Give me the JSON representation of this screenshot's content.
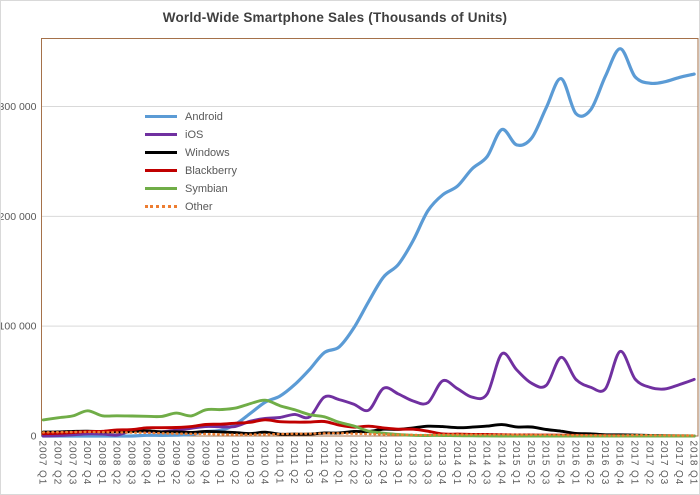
{
  "chart_data": {
    "type": "line",
    "title": "World-Wide Smartphone Sales (Thousands of Units)",
    "xlabel": "",
    "ylabel": "",
    "ylim": [
      0,
      360000
    ],
    "grid": "horizontal",
    "legend_position": "inside-top-left",
    "axis_text_color": "#595959",
    "plot_border_color": "#a5714a",
    "gridline_color": "#d9d9d9",
    "y_ticks": [
      {
        "label": "0",
        "value": 0
      },
      {
        "label": "100 000",
        "value": 100000
      },
      {
        "label": "200 000",
        "value": 200000
      },
      {
        "label": "300 000",
        "value": 300000
      }
    ],
    "categories": [
      "2007 Q1",
      "2007 Q2",
      "2007 Q3",
      "2007 Q4",
      "2008 Q1",
      "2008 Q2",
      "2008 Q3",
      "2008 Q4",
      "2009 Q1",
      "2009 Q2",
      "2009 Q3",
      "2009 Q4",
      "2010 Q1",
      "2010 Q2",
      "2010 Q3",
      "2010 Q4",
      "2011 Q1",
      "2011 Q2",
      "2011 Q3",
      "2011 Q4",
      "2012 Q1",
      "2012 Q2",
      "2012 Q3",
      "2012 Q4",
      "2013 Q1",
      "2013 Q2",
      "2013 Q3",
      "2013 Q4",
      "2014 Q1",
      "2014 Q2",
      "2014 Q3",
      "2014 Q4",
      "2015 Q1",
      "2015 Q2",
      "2015 Q3",
      "2015 Q4",
      "2016 Q1",
      "2016 Q2",
      "2016 Q3",
      "2016 Q4",
      "2017 Q1",
      "2017 Q2",
      "2017 Q3",
      "2017 Q4",
      "2018 Q1"
    ],
    "series": [
      {
        "name": "Android",
        "color": "#5B9BD5",
        "style": "solid",
        "values": [
          0,
          0,
          0,
          0,
          0,
          0,
          0,
          640,
          575,
          755,
          1425,
          4045,
          5225,
          10655,
          20545,
          30800,
          36350,
          46775,
          60490,
          75905,
          81065,
          98530,
          122480,
          144720,
          156185,
          177900,
          205025,
          219615,
          227550,
          243485,
          254355,
          279060,
          265010,
          271010,
          298795,
          325395,
          293770,
          296910,
          327570,
          352670,
          327165,
          321190,
          322500,
          326500,
          329500
        ]
      },
      {
        "name": "iOS",
        "color": "#7030A0",
        "style": "solid",
        "values": [
          0,
          270,
          1105,
          1930,
          1725,
          895,
          4720,
          4080,
          3850,
          5325,
          7040,
          8675,
          8360,
          8745,
          13485,
          16010,
          16885,
          19630,
          17295,
          35455,
          33120,
          28935,
          23550,
          43455,
          38330,
          31900,
          30330,
          50225,
          43060,
          35345,
          38185,
          74830,
          60175,
          48085,
          46060,
          71525,
          51630,
          44395,
          43000,
          77040,
          51990,
          44315,
          42800,
          46800,
          51500
        ]
      },
      {
        "name": "Windows",
        "color": "#000000",
        "style": "solid",
        "values": [
          3580,
          3600,
          4180,
          4375,
          3900,
          3875,
          4055,
          4715,
          3740,
          3830,
          3260,
          4205,
          3705,
          3060,
          2205,
          3420,
          1600,
          1725,
          1700,
          2760,
          2715,
          4085,
          4060,
          6185,
          5990,
          7410,
          8910,
          8535,
          7580,
          8095,
          9035,
          10425,
          8270,
          8200,
          5875,
          4395,
          2400,
          1970,
          1090,
          1090,
          800,
          500,
          300,
          200,
          100
        ]
      },
      {
        "name": "Blackberry",
        "color": "#C00000",
        "style": "solid",
        "values": [
          2080,
          2470,
          3190,
          4025,
          4310,
          5595,
          5800,
          7445,
          7535,
          7780,
          8525,
          10510,
          10755,
          11630,
          12510,
          14760,
          13005,
          12650,
          12700,
          13185,
          9940,
          7990,
          8945,
          7335,
          6220,
          6180,
          4400,
          1810,
          1715,
          1500,
          1325,
          1155,
          975,
          905,
          820,
          700,
          660,
          400,
          375,
          210,
          45,
          0,
          0,
          0,
          0
        ]
      },
      {
        "name": "Symbian",
        "color": "#70AD47",
        "style": "solid",
        "values": [
          14700,
          16600,
          18300,
          22900,
          18400,
          18405,
          18180,
          17950,
          17825,
          20880,
          18315,
          23860,
          24070,
          25385,
          29480,
          32640,
          27600,
          23855,
          19500,
          17460,
          12470,
          9070,
          4405,
          2570,
          1350,
          630,
          460,
          465,
          240,
          140,
          80,
          40,
          0,
          0,
          0,
          0,
          0,
          0,
          0,
          0,
          0,
          0,
          0,
          0,
          0
        ]
      },
      {
        "name": "Other",
        "color": "#ED7D31",
        "style": "dotted",
        "values": [
          3300,
          3500,
          3600,
          3700,
          3500,
          3300,
          3100,
          2900,
          2500,
          2200,
          2000,
          1800,
          1500,
          1300,
          1300,
          1500,
          1800,
          2000,
          2100,
          2300,
          2500,
          2100,
          1800,
          1500,
          1200,
          1000,
          900,
          1300,
          1400,
          1300,
          1200,
          1300,
          1200,
          1100,
          1000,
          900,
          700,
          600,
          500,
          450,
          800,
          700,
          600,
          500,
          450
        ]
      }
    ]
  }
}
